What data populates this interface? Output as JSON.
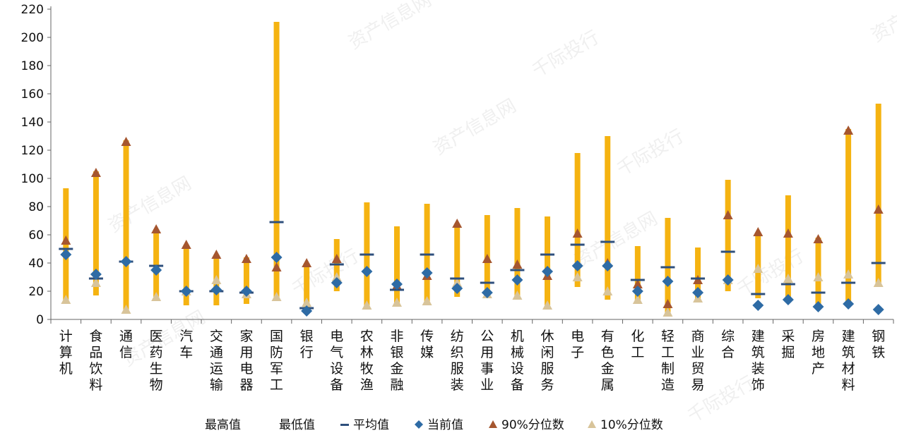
{
  "chart_data": {
    "type": "range-bar",
    "ylim": [
      0,
      220
    ],
    "yticks": [
      0,
      20,
      40,
      60,
      80,
      100,
      120,
      140,
      160,
      180,
      200,
      220
    ],
    "categories": [
      "计算机",
      "食品饮料",
      "通信",
      "医药生物",
      "汽车",
      "交通运输",
      "家用电器",
      "国防军工",
      "银行",
      "电气设备",
      "农林牧渔",
      "非银金融",
      "传媒",
      "纺织服装",
      "公用事业",
      "机械设备",
      "休闲服务",
      "电子",
      "有色金属",
      "化工",
      "轻工制造",
      "商业贸易",
      "综合",
      "建筑装饰",
      "采掘",
      "房地产",
      "建筑材料",
      "钢铁"
    ],
    "series": [
      {
        "name": "最高值",
        "values": [
          93,
          105,
          127,
          64,
          53,
          46,
          44,
          211,
          40,
          57,
          83,
          66,
          82,
          68,
          74,
          79,
          73,
          118,
          130,
          52,
          72,
          51,
          99,
          61,
          88,
          58,
          135,
          153
        ]
      },
      {
        "name": "最低值",
        "values": [
          12,
          17,
          6,
          16,
          10,
          10,
          11,
          15,
          6,
          20,
          8,
          11,
          11,
          16,
          17,
          14,
          8,
          23,
          14,
          13,
          4,
          13,
          20,
          15,
          13,
          8,
          10,
          23
        ]
      },
      {
        "name": "平均值",
        "values": [
          50,
          29,
          41,
          38,
          20,
          20,
          19,
          69,
          8,
          39,
          46,
          21,
          46,
          29,
          26,
          35,
          46,
          53,
          55,
          28,
          37,
          29,
          48,
          18,
          25,
          19,
          26,
          40
        ]
      },
      {
        "name": "当前值",
        "values": [
          46,
          32,
          41,
          35,
          20,
          21,
          20,
          44,
          6,
          26,
          34,
          25,
          33,
          22,
          19,
          28,
          34,
          38,
          38,
          20,
          27,
          19,
          28,
          10,
          14,
          9,
          11,
          7
        ]
      },
      {
        "name": "90%分位数",
        "values": [
          56,
          104,
          126,
          64,
          53,
          46,
          43,
          37,
          40,
          43,
          null,
          24,
          31,
          68,
          43,
          39,
          31,
          61,
          40,
          25,
          11,
          28,
          74,
          62,
          61,
          57,
          134,
          78
        ]
      },
      {
        "name": "10%分位数",
        "values": [
          14,
          26,
          7,
          16,
          20,
          28,
          18,
          16,
          12,
          30,
          10,
          12,
          13,
          26,
          18,
          17,
          10,
          30,
          20,
          14,
          5,
          15,
          28,
          36,
          29,
          30,
          32,
          26
        ]
      }
    ],
    "colors": {
      "bar": "#F5B311",
      "mean": "#2E4F7C",
      "current": "#2E6BA5",
      "p90": "#A5562F",
      "p10": "#D8C49A"
    },
    "legend": [
      "最高值",
      "最低值",
      "平均值",
      "当前值",
      "90%分位数",
      "10%分位数"
    ],
    "legend_position": "bottom",
    "grid": false
  },
  "watermarks": [
    "资产信息网",
    "千际投行"
  ]
}
